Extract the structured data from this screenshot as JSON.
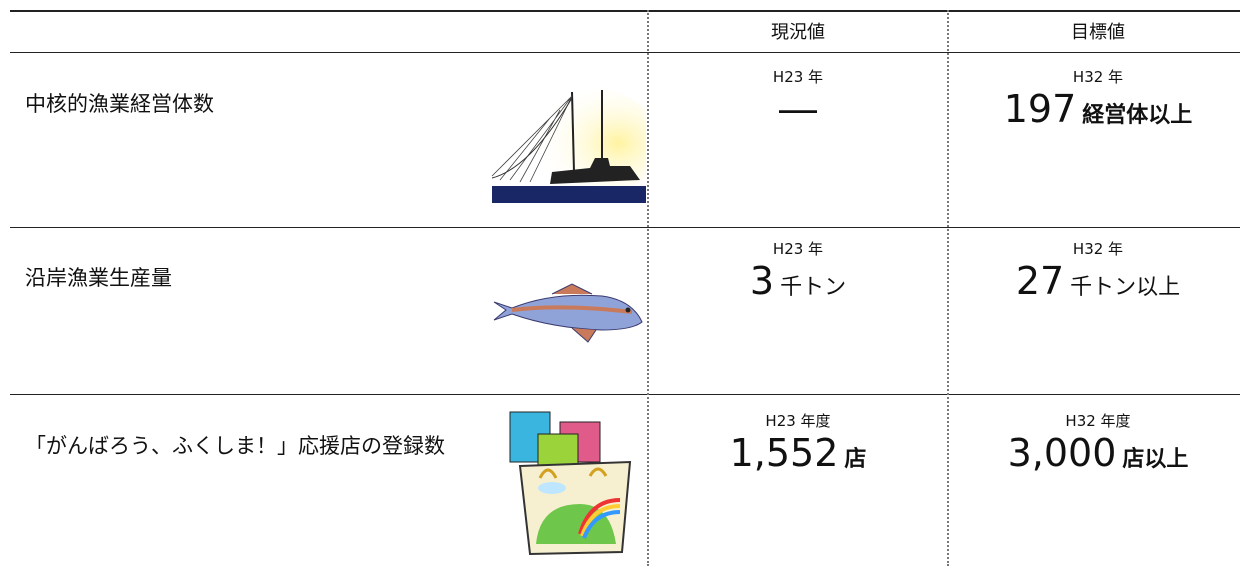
{
  "table": {
    "header": [
      "現況値",
      "目標値"
    ],
    "rows": [
      {
        "label": "中核的漁業経営体数",
        "current": {
          "year": "H23 年",
          "value": "―",
          "unit": ""
        },
        "target": {
          "year": "H32 年",
          "value": "197",
          "unit": "経営体以上"
        }
      },
      {
        "label": "沿岸漁業生産量",
        "current": {
          "year": "H23 年",
          "value": "3",
          "unit": "千トン"
        },
        "target": {
          "year": "H32 年",
          "value": "27",
          "unit": "千トン以上"
        }
      },
      {
        "label": "「がんばろう、ふくしま！」応援店の登録数",
        "current": {
          "year": "H23 年度",
          "value": "1,552",
          "unit": "店"
        },
        "target": {
          "year": "H32 年度",
          "value": "3,000",
          "unit": "店以上"
        }
      }
    ]
  }
}
